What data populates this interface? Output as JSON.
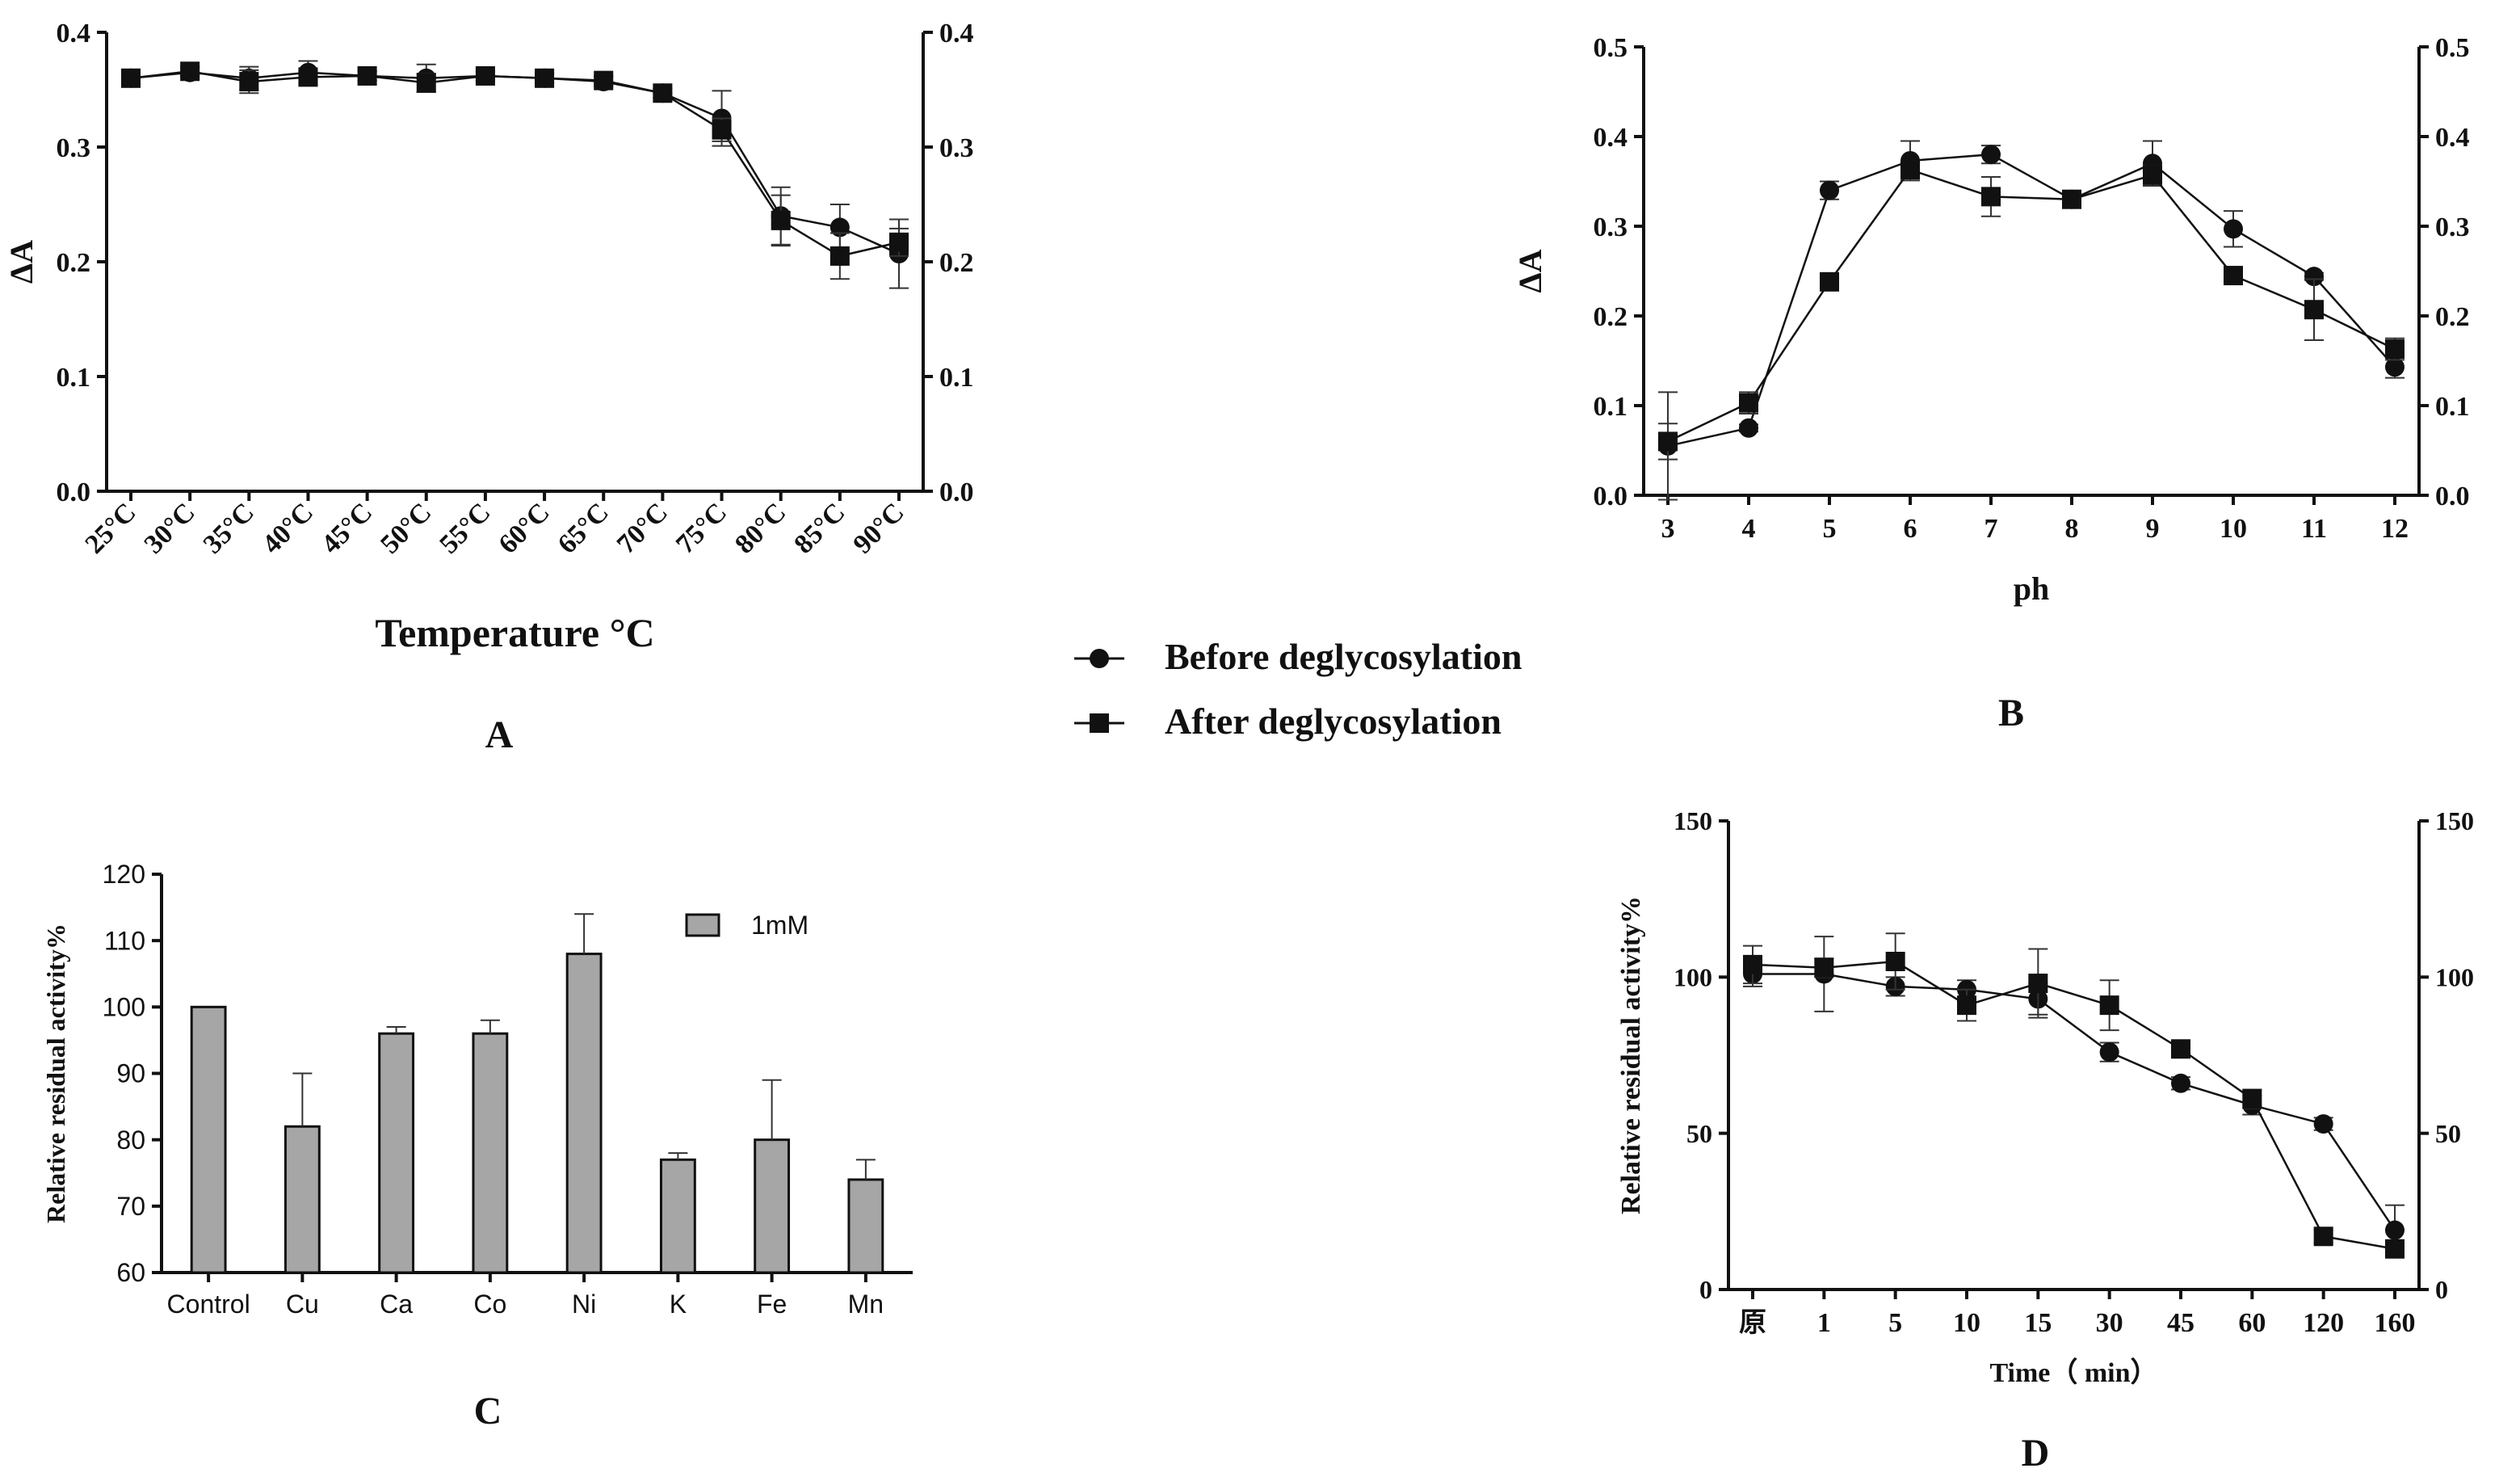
{
  "legend": {
    "before_label": "Before deglycosylation",
    "after_label": "After deglycosylation"
  },
  "panels": {
    "A": "A",
    "B": "B",
    "C": "C",
    "D": "D"
  },
  "chart_data": [
    {
      "id": "A",
      "type": "line",
      "title": "",
      "xlabel": "Temperature °C",
      "ylabel": "ΔA",
      "categories": [
        "25°C",
        "30°C",
        "35°C",
        "40°C",
        "45°C",
        "50°C",
        "55°C",
        "60°C",
        "65°C",
        "70°C",
        "75°C",
        "80°C",
        "85°C",
        "90°C"
      ],
      "ylim": [
        0,
        0.4
      ],
      "yticks": [
        "0.0",
        "0.1",
        "0.2",
        "0.3",
        "0.4"
      ],
      "right_axis": true,
      "series": [
        {
          "name": "Before deglycosylation",
          "marker": "circle",
          "values": [
            0.36,
            0.365,
            0.36,
            0.365,
            0.362,
            0.36,
            0.362,
            0.36,
            0.357,
            0.347,
            0.325,
            0.24,
            0.23,
            0.207
          ],
          "errors": [
            0.004,
            0.004,
            0.01,
            0.01,
            0.004,
            0.012,
            0.004,
            0.004,
            0.004,
            0.004,
            0.024,
            0.025,
            0.02,
            0.03
          ]
        },
        {
          "name": "After deglycosylation",
          "marker": "square",
          "values": [
            0.36,
            0.366,
            0.357,
            0.361,
            0.362,
            0.356,
            0.362,
            0.36,
            0.358,
            0.347,
            0.315,
            0.236,
            0.205,
            0.217
          ],
          "errors": [
            0.004,
            0.004,
            0.01,
            0.005,
            0.004,
            0.008,
            0.004,
            0.004,
            0.004,
            0.004,
            0.01,
            0.022,
            0.02,
            0.012
          ]
        }
      ]
    },
    {
      "id": "B",
      "type": "line",
      "title": "",
      "xlabel": "ph",
      "ylabel": "ΔA",
      "categories": [
        "3",
        "4",
        "5",
        "6",
        "7",
        "8",
        "9",
        "10",
        "11",
        "12"
      ],
      "ylim": [
        0,
        0.5
      ],
      "yticks": [
        "0.0",
        "0.1",
        "0.2",
        "0.3",
        "0.4",
        "0.5"
      ],
      "right_axis": true,
      "series": [
        {
          "name": "Before deglycosylation",
          "marker": "circle",
          "values": [
            0.055,
            0.075,
            0.34,
            0.373,
            0.38,
            0.33,
            0.37,
            0.297,
            0.244,
            0.143
          ],
          "errors": [
            0.06,
            0.004,
            0.01,
            0.022,
            0.01,
            0.004,
            0.025,
            0.02,
            0.004,
            0.012
          ]
        },
        {
          "name": "After deglycosylation",
          "marker": "square",
          "values": [
            0.06,
            0.103,
            0.238,
            0.363,
            0.333,
            0.33,
            0.357,
            0.245,
            0.207,
            0.163
          ],
          "errors": [
            0.02,
            0.012,
            0.004,
            0.01,
            0.022,
            0.004,
            0.01,
            0.004,
            0.034,
            0.012
          ]
        }
      ]
    },
    {
      "id": "C",
      "type": "bar",
      "title": "",
      "xlabel": "",
      "ylabel": "Relative residual activity%",
      "categories": [
        "Control",
        "Cu",
        "Ca",
        "Co",
        "Ni",
        "K",
        "Fe",
        "Mn"
      ],
      "ylim": [
        60,
        120
      ],
      "yticks": [
        "60",
        "70",
        "80",
        "90",
        "100",
        "110",
        "120"
      ],
      "legend_position": "top-right",
      "bar_color": "#a6a6a6",
      "series": [
        {
          "name": "1mM",
          "values": [
            100,
            82,
            96,
            96,
            108,
            77,
            80,
            74
          ],
          "errors": [
            0,
            8,
            1,
            2,
            6,
            1,
            9,
            3
          ]
        }
      ]
    },
    {
      "id": "D",
      "type": "line",
      "title": "",
      "xlabel": "Time（ min）",
      "ylabel": "Relative residual activity%",
      "categories": [
        "原",
        "1",
        "5",
        "10",
        "15",
        "30",
        "45",
        "60",
        "120",
        "160"
      ],
      "ylim": [
        0,
        150
      ],
      "yticks": [
        "0",
        "50",
        "100",
        "150"
      ],
      "right_axis": true,
      "series": [
        {
          "name": "Before deglycosylation",
          "marker": "circle",
          "values": [
            101,
            101,
            97,
            96,
            93,
            76,
            66,
            59,
            53,
            19
          ],
          "errors": [
            4,
            12,
            3,
            3,
            5,
            3,
            2,
            3,
            2,
            8
          ]
        },
        {
          "name": "After deglycosylation",
          "marker": "square",
          "values": [
            104,
            103,
            105,
            91,
            98,
            91,
            77,
            61,
            17,
            13
          ],
          "errors": [
            6,
            3,
            9,
            5,
            11,
            8,
            2,
            3,
            2,
            2
          ]
        }
      ]
    }
  ]
}
